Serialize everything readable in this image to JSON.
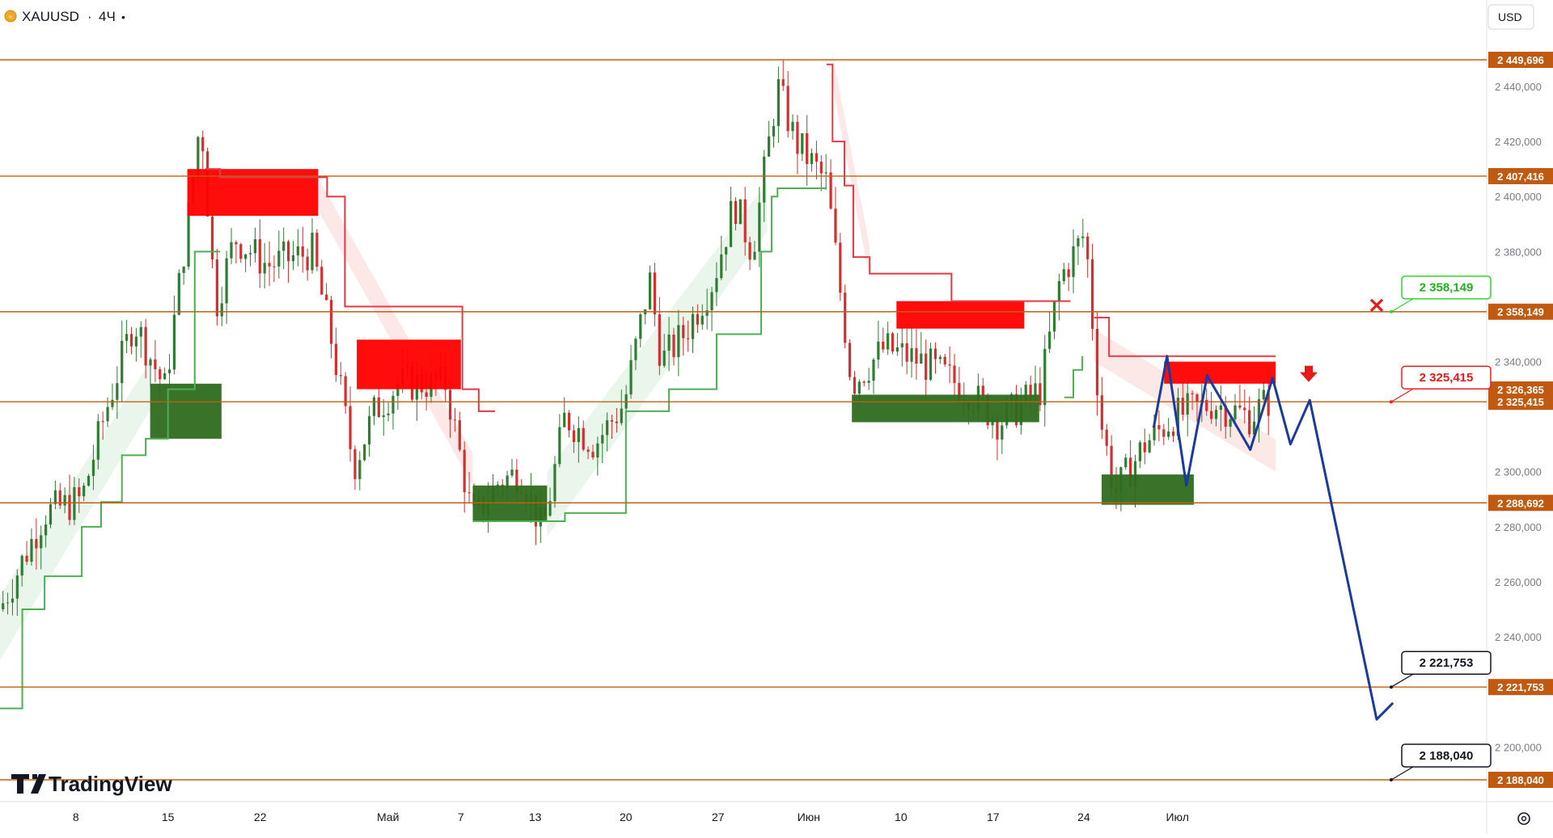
{
  "header": {
    "symbol": "XAUUSD",
    "separator": "·",
    "timeframe": "4Ч",
    "dot": "•"
  },
  "currency_button": {
    "label": "USD"
  },
  "logo": {
    "text": "TradingView"
  },
  "colors": {
    "level_line": "#c06010",
    "level_tag": "#c05a10",
    "bull": "#2e7d32",
    "bear": "#d32f2f",
    "supply_zone": "#ff0000",
    "demand_zone": "#2e6b1e",
    "trail_up": "#4caf50",
    "trail_down": "#e53945",
    "fill_up": "#e8f5e9",
    "fill_down": "#fde5e5",
    "projection": "#1a3a9c"
  },
  "chart_data": {
    "type": "candlestick",
    "symbol": "XAUUSD",
    "timeframe": "4Ч",
    "x_tick_labels": [
      "8",
      "15",
      "22",
      "Май",
      "7",
      "13",
      "20",
      "27",
      "Июн",
      "10",
      "17",
      "24",
      "Июл"
    ],
    "y_tick_labels": [
      2440,
      2420,
      2400,
      2380,
      2340,
      2300,
      2280,
      2260,
      2240,
      2200
    ],
    "y_tick_display": [
      "2 440,000",
      "2 420,000",
      "2 400,000",
      "2 380,000",
      "2 340,000",
      "2 300,000",
      "2 280,000",
      "2 260,000",
      "2 240,000",
      "2 200,000"
    ],
    "ylim": [
      2180,
      2460
    ],
    "grid": false,
    "horizontal_levels": [
      {
        "value": 2449.696,
        "label": "2 449,696"
      },
      {
        "value": 2407.416,
        "label": "2 407,416"
      },
      {
        "value": 2358.149,
        "label": "2 358,149"
      },
      {
        "value": 2325.415,
        "label": "2 325,415"
      },
      {
        "value": 2288.692,
        "label": "2 288,692"
      },
      {
        "value": 2221.753,
        "label": "2 221,753"
      },
      {
        "value": 2188.04,
        "label": "2 188,040"
      }
    ],
    "current_price": {
      "value": 2326.365,
      "label": "2 326,365"
    },
    "chart_labels": [
      {
        "text": "2 358,149",
        "value": 2358.149,
        "style": "green",
        "marker": "cross"
      },
      {
        "text": "2 325,415",
        "value": 2325.415,
        "style": "red",
        "marker": "arrow-down"
      },
      {
        "text": "2 221,753",
        "value": 2221.753,
        "style": "black"
      },
      {
        "text": "2 188,040",
        "value": 2188.04,
        "style": "black"
      }
    ],
    "supply_zones": [
      {
        "x0": 0.126,
        "x1": 0.214,
        "y0": 2393,
        "y1": 2410
      },
      {
        "x0": 0.24,
        "x1": 0.31,
        "y0": 2330,
        "y1": 2348
      },
      {
        "x0": 0.603,
        "x1": 0.689,
        "y0": 2352,
        "y1": 2362
      },
      {
        "x0": 0.783,
        "x1": 0.858,
        "y0": 2332,
        "y1": 2340
      }
    ],
    "demand_zones": [
      {
        "x0": 0.101,
        "x1": 0.149,
        "y0": 2312,
        "y1": 2332
      },
      {
        "x0": 0.318,
        "x1": 0.368,
        "y0": 2282,
        "y1": 2295
      },
      {
        "x0": 0.573,
        "x1": 0.699,
        "y0": 2318,
        "y1": 2328
      },
      {
        "x0": 0.741,
        "x1": 0.803,
        "y0": 2288,
        "y1": 2299
      }
    ],
    "trail_up_segments": [
      [
        [
          0.0,
          2214
        ],
        [
          0.015,
          2214
        ],
        [
          0.015,
          2250
        ],
        [
          0.03,
          2250
        ],
        [
          0.03,
          2262
        ],
        [
          0.055,
          2262
        ],
        [
          0.055,
          2280
        ],
        [
          0.068,
          2280
        ],
        [
          0.068,
          2289
        ],
        [
          0.082,
          2289
        ],
        [
          0.082,
          2306
        ],
        [
          0.098,
          2306
        ],
        [
          0.098,
          2312
        ],
        [
          0.113,
          2312
        ],
        [
          0.113,
          2330
        ],
        [
          0.131,
          2330
        ],
        [
          0.131,
          2380
        ],
        [
          0.148,
          2380
        ]
      ],
      [
        [
          0.318,
          2282
        ],
        [
          0.38,
          2282
        ],
        [
          0.38,
          2285
        ],
        [
          0.421,
          2285
        ],
        [
          0.421,
          2322
        ],
        [
          0.45,
          2322
        ],
        [
          0.45,
          2330
        ],
        [
          0.482,
          2330
        ],
        [
          0.482,
          2350
        ],
        [
          0.512,
          2350
        ],
        [
          0.512,
          2380
        ],
        [
          0.519,
          2380
        ],
        [
          0.519,
          2400
        ],
        [
          0.523,
          2400
        ],
        [
          0.523,
          2403
        ],
        [
          0.556,
          2403
        ]
      ],
      [
        [
          0.716,
          2327
        ],
        [
          0.722,
          2327
        ],
        [
          0.722,
          2337
        ],
        [
          0.728,
          2337
        ],
        [
          0.728,
          2342
        ]
      ]
    ],
    "trail_down_segments": [
      [
        [
          0.138,
          2410
        ],
        [
          0.148,
          2410
        ],
        [
          0.148,
          2407
        ],
        [
          0.22,
          2407
        ],
        [
          0.22,
          2400
        ],
        [
          0.232,
          2400
        ],
        [
          0.232,
          2360
        ],
        [
          0.311,
          2360
        ],
        [
          0.311,
          2330
        ],
        [
          0.322,
          2330
        ],
        [
          0.322,
          2322
        ],
        [
          0.333,
          2322
        ]
      ],
      [
        [
          0.556,
          2448
        ],
        [
          0.56,
          2448
        ],
        [
          0.56,
          2420
        ],
        [
          0.568,
          2420
        ],
        [
          0.568,
          2404
        ],
        [
          0.574,
          2404
        ],
        [
          0.574,
          2378
        ],
        [
          0.585,
          2378
        ],
        [
          0.585,
          2372
        ],
        [
          0.64,
          2372
        ],
        [
          0.64,
          2362
        ],
        [
          0.72,
          2362
        ]
      ],
      [
        [
          0.736,
          2356
        ],
        [
          0.746,
          2356
        ],
        [
          0.746,
          2342
        ],
        [
          0.858,
          2342
        ]
      ]
    ],
    "fill_up_regions": [
      {
        "x0": 0.0,
        "x1": 0.101,
        "top_start": 2255,
        "top_end": 2340
      },
      {
        "x0": 0.368,
        "x1": 0.516,
        "top_start": 2300,
        "top_end": 2405
      }
    ],
    "fill_down_regions": [
      {
        "x0": 0.214,
        "x1": 0.318,
        "bottom_start": 2395,
        "bottom_end": 2295
      },
      {
        "x0": 0.56,
        "x1": 0.585,
        "bottom_start": 2440,
        "bottom_end": 2370
      },
      {
        "x0": 0.736,
        "x1": 0.858,
        "bottom_start": 2340,
        "bottom_end": 2300
      }
    ],
    "projection_path": [
      [
        0.776,
        2316
      ],
      [
        0.785,
        2342
      ],
      [
        0.798,
        2295
      ],
      [
        0.812,
        2335
      ],
      [
        0.841,
        2308
      ],
      [
        0.856,
        2334
      ],
      [
        0.868,
        2310
      ],
      [
        0.881,
        2326
      ],
      [
        0.926,
        2210
      ],
      [
        0.937,
        2216
      ]
    ],
    "candle_path": [
      [
        0.0,
        2250
      ],
      [
        0.03,
        2285
      ],
      [
        0.055,
        2290
      ],
      [
        0.07,
        2320
      ],
      [
        0.09,
        2355
      ],
      [
        0.111,
        2330
      ],
      [
        0.128,
        2398
      ],
      [
        0.135,
        2430
      ],
      [
        0.145,
        2360
      ],
      [
        0.158,
        2385
      ],
      [
        0.18,
        2375
      ],
      [
        0.21,
        2380
      ],
      [
        0.224,
        2345
      ],
      [
        0.238,
        2302
      ],
      [
        0.252,
        2322
      ],
      [
        0.268,
        2332
      ],
      [
        0.3,
        2332
      ],
      [
        0.318,
        2282
      ],
      [
        0.335,
        2296
      ],
      [
        0.35,
        2300
      ],
      [
        0.365,
        2278
      ],
      [
        0.38,
        2320
      ],
      [
        0.4,
        2310
      ],
      [
        0.42,
        2325
      ],
      [
        0.437,
        2370
      ],
      [
        0.445,
        2340
      ],
      [
        0.46,
        2350
      ],
      [
        0.48,
        2370
      ],
      [
        0.494,
        2398
      ],
      [
        0.506,
        2380
      ],
      [
        0.523,
        2440
      ],
      [
        0.535,
        2420
      ],
      [
        0.556,
        2405
      ],
      [
        0.573,
        2332
      ],
      [
        0.595,
        2345
      ],
      [
        0.62,
        2340
      ],
      [
        0.65,
        2330
      ],
      [
        0.672,
        2318
      ],
      [
        0.7,
        2330
      ],
      [
        0.713,
        2370
      ],
      [
        0.73,
        2387
      ],
      [
        0.74,
        2320
      ],
      [
        0.75,
        2292
      ],
      [
        0.77,
        2310
      ],
      [
        0.79,
        2320
      ],
      [
        0.816,
        2325
      ],
      [
        0.84,
        2320
      ],
      [
        0.858,
        2328
      ]
    ],
    "sparse_labels_note": ""
  }
}
